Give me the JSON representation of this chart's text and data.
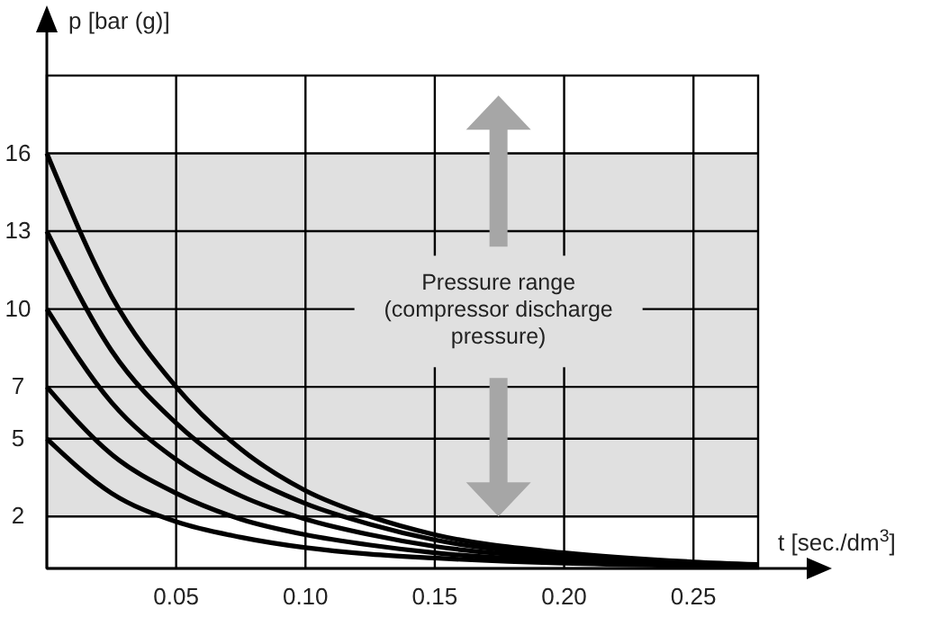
{
  "chart_data": {
    "type": "line",
    "xlabel": "t [sec./dm$^{3}$]",
    "ylabel": "p [bar (g)]",
    "x": [
      0,
      0.025,
      0.05,
      0.075,
      0.1,
      0.125,
      0.15,
      0.2,
      0.25,
      0.275
    ],
    "series": [
      {
        "color": "#000000",
        "values": [
          16,
          10.5,
          7.0,
          4.6,
          3.0,
          2.0,
          1.3,
          0.6,
          0.25,
          0.15
        ]
      },
      {
        "color": "#000000",
        "values": [
          13,
          8.4,
          5.6,
          3.7,
          2.5,
          1.7,
          1.1,
          0.5,
          0.2,
          0.12
        ]
      },
      {
        "color": "#000000",
        "values": [
          10,
          6.4,
          4.2,
          2.8,
          1.9,
          1.3,
          0.85,
          0.4,
          0.18,
          0.1
        ]
      },
      {
        "color": "#000000",
        "values": [
          7,
          4.4,
          2.9,
          1.9,
          1.3,
          0.9,
          0.6,
          0.3,
          0.15,
          0.08
        ]
      },
      {
        "color": "#000000",
        "values": [
          5,
          2.9,
          1.8,
          1.2,
          0.8,
          0.55,
          0.4,
          0.2,
          0.1,
          0.06
        ]
      }
    ],
    "xlim": [
      0,
      0.275
    ],
    "xticks": [
      {
        "value": 0.05,
        "label": "0.05"
      },
      {
        "value": 0.1,
        "label": "0.10"
      },
      {
        "value": 0.15,
        "label": "0.15"
      },
      {
        "value": 0.2,
        "label": "0.20"
      },
      {
        "value": 0.25,
        "label": "0.25"
      }
    ],
    "ylim": [
      0,
      19
    ],
    "yticks": [
      2,
      5,
      7,
      10,
      13,
      16
    ],
    "bands": [
      {
        "axis": "y",
        "from": 2,
        "to": 16,
        "color": "#e0e0e0"
      }
    ],
    "annotations": [
      "Pressure range\n(compressor discharge\npressure)"
    ],
    "grid": true,
    "marker": "none",
    "line_style": "solid"
  }
}
